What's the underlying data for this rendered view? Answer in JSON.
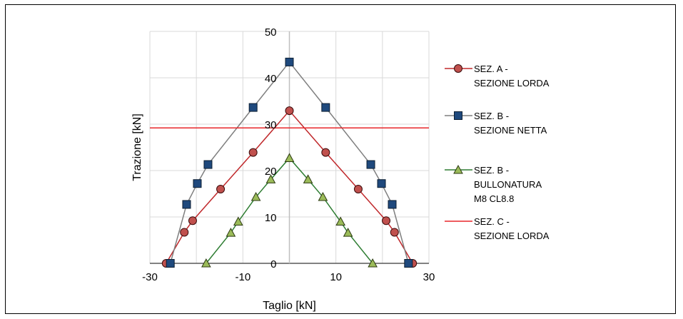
{
  "chart_data": {
    "type": "line",
    "title": "",
    "xlabel": "Taglio [kN]",
    "ylabel": "Trazione [kN]",
    "xlim": [
      -30,
      30
    ],
    "ylim": [
      0,
      50
    ],
    "x_ticks": [
      "-30",
      "-10",
      "10",
      "30"
    ],
    "y_ticks": [
      "0",
      "10",
      "20",
      "30",
      "40",
      "50"
    ],
    "x_tick_values": [
      -30,
      -10,
      10,
      30
    ],
    "y_tick_values": [
      0,
      10,
      20,
      30,
      40,
      50
    ],
    "grid": true,
    "legend_position": "right",
    "series": [
      {
        "name": [
          "SEZ. A -",
          "SEZIONE LORDA"
        ],
        "color": "#c0282b",
        "marker": "circle",
        "marker_fill": "#c0504d",
        "x": [
          -26.5,
          -22.6,
          -20.8,
          -14.8,
          -7.8,
          0,
          7.8,
          14.8,
          20.8,
          22.6,
          26.5
        ],
        "y": [
          0,
          6.7,
          9.2,
          16.0,
          23.9,
          32.9,
          23.9,
          16.0,
          9.2,
          6.7,
          0
        ]
      },
      {
        "name": [
          "SEZ. B -",
          "SEZIONE NETTA"
        ],
        "color": "#7f7f7f",
        "marker": "square",
        "marker_fill": "#1f497d",
        "x": [
          -25.6,
          -22.1,
          -19.8,
          -17.5,
          -7.8,
          0,
          7.8,
          17.5,
          19.8,
          22.1,
          25.6
        ],
        "y": [
          0,
          12.7,
          17.2,
          21.3,
          33.6,
          43.4,
          33.6,
          21.3,
          17.2,
          12.7,
          0
        ]
      },
      {
        "name": [
          "SEZ. B -",
          "BULLONATURA",
          "M8 CL8.8"
        ],
        "color": "#2e7d32",
        "marker": "triangle",
        "marker_fill": "#9bbb59",
        "x": [
          -17.9,
          -12.6,
          -11.0,
          -7.2,
          -4.0,
          0,
          4.0,
          7.2,
          11.0,
          12.6,
          17.9
        ],
        "y": [
          0,
          6.6,
          9.0,
          14.3,
          18.1,
          22.7,
          18.1,
          14.3,
          9.0,
          6.6,
          0
        ]
      },
      {
        "name": [
          "SEZ. C -",
          "SEZIONE LORDA"
        ],
        "color": "#e8262a",
        "marker": "none",
        "type": "hline",
        "y": 29.2
      }
    ]
  }
}
